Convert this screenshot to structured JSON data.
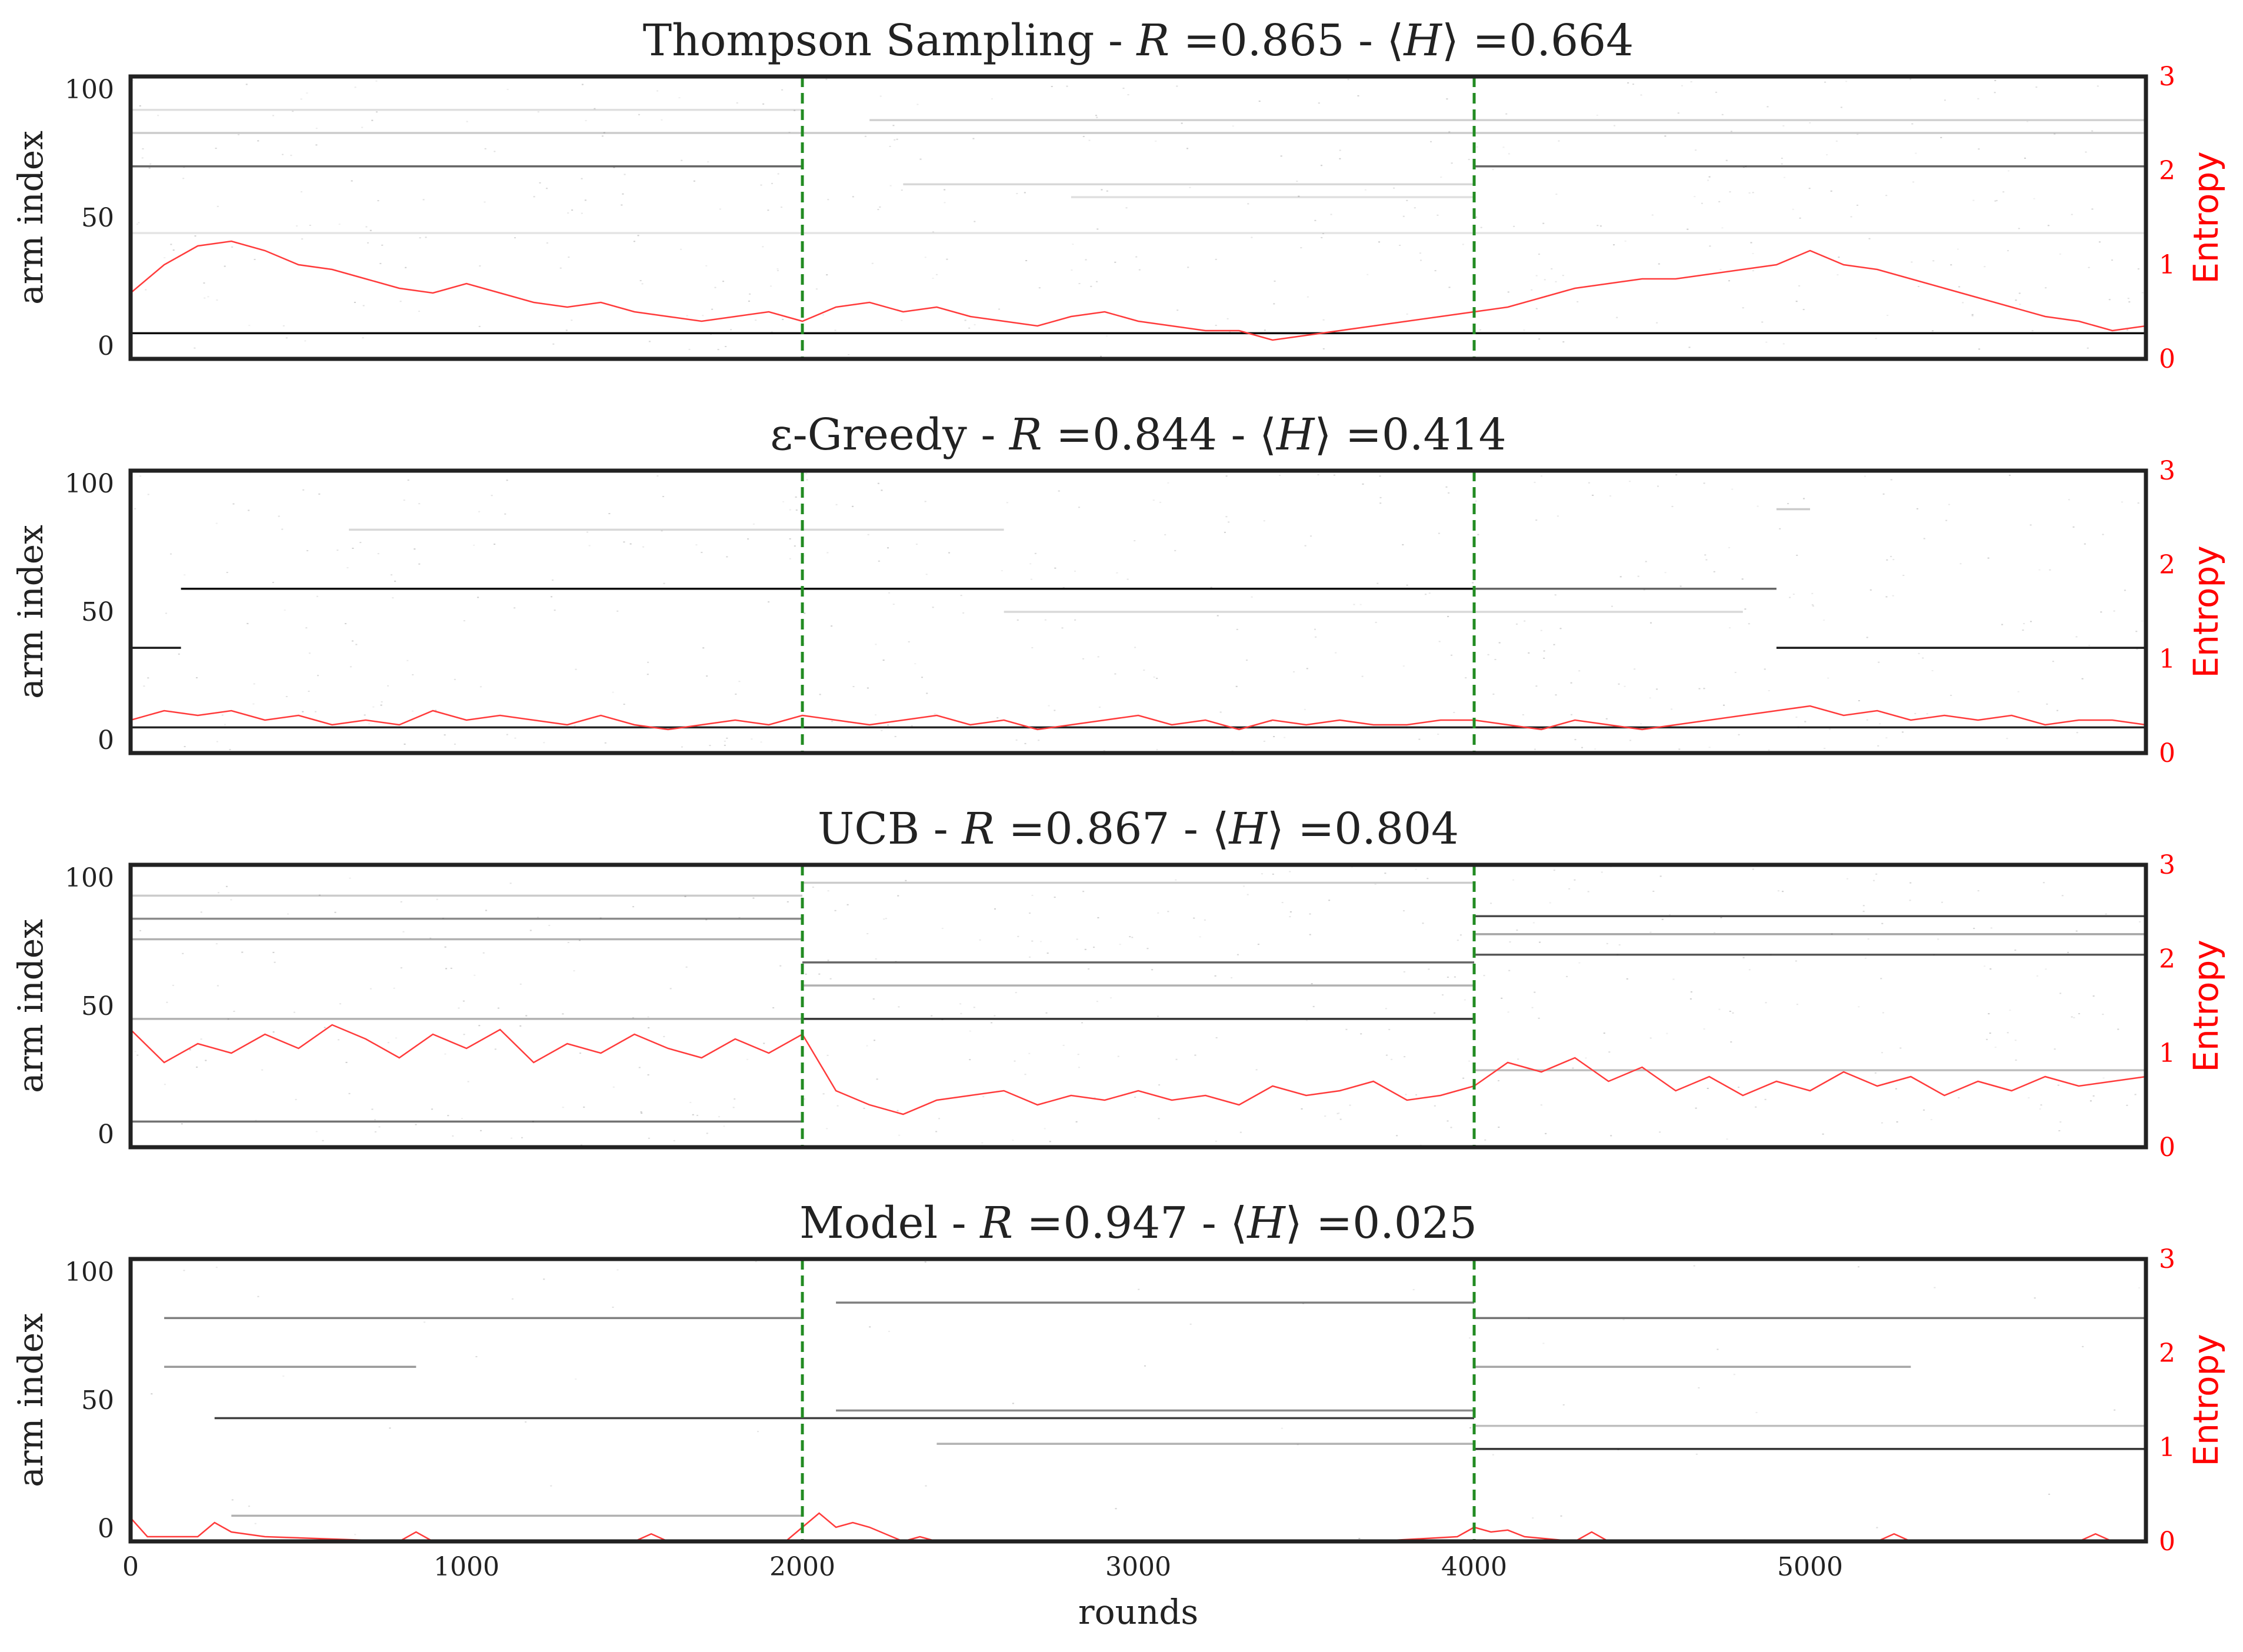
{
  "chart_data": [
    {
      "type": "heatmap",
      "title_prefix": "Thompson Sampling - ",
      "metric_r": "R",
      "reward_text": " =0.865 - ",
      "entropy_open": "⟨",
      "metric_h": "H",
      "entropy_text": "⟩ =0.664",
      "ylabel": "arm index",
      "ylabel_right": "Entropy",
      "xlim": [
        0,
        6000
      ],
      "ylim": [
        -5,
        105
      ],
      "ylim_right": [
        0,
        3
      ],
      "yticks": [
        0,
        50,
        100
      ],
      "yticks_right": [
        0,
        1,
        2,
        3
      ],
      "change_points": [
        2000,
        4000
      ],
      "arm_traces": [
        {
          "arm": 5,
          "start": 0,
          "end": 6000,
          "intensity": 0.95
        },
        {
          "arm": 70,
          "start": 0,
          "end": 2000,
          "intensity": 0.6
        },
        {
          "arm": 70,
          "start": 4000,
          "end": 6000,
          "intensity": 0.6
        },
        {
          "arm": 83,
          "start": 0,
          "end": 6000,
          "intensity": 0.2
        },
        {
          "arm": 88,
          "start": 2200,
          "end": 6000,
          "intensity": 0.18
        },
        {
          "arm": 63,
          "start": 2300,
          "end": 4000,
          "intensity": 0.15
        },
        {
          "arm": 58,
          "start": 2800,
          "end": 4000,
          "intensity": 0.12
        },
        {
          "arm": 92,
          "start": 0,
          "end": 2000,
          "intensity": 0.12
        },
        {
          "arm": 44,
          "start": 0,
          "end": 6000,
          "intensity": 0.1
        }
      ],
      "entropy": {
        "x": [
          0,
          100,
          200,
          300,
          400,
          500,
          600,
          700,
          800,
          900,
          1000,
          1100,
          1200,
          1300,
          1400,
          1500,
          1600,
          1700,
          1800,
          1900,
          2000,
          2100,
          2200,
          2300,
          2400,
          2500,
          2600,
          2700,
          2800,
          2900,
          3000,
          3100,
          3200,
          3300,
          3400,
          3500,
          3600,
          3700,
          3800,
          3900,
          4000,
          4100,
          4200,
          4300,
          4400,
          4500,
          4600,
          4700,
          4800,
          4900,
          5000,
          5100,
          5200,
          5300,
          5400,
          5500,
          5600,
          5700,
          5800,
          5900,
          6000
        ],
        "y": [
          0.7,
          1.0,
          1.2,
          1.25,
          1.15,
          1.0,
          0.95,
          0.85,
          0.75,
          0.7,
          0.8,
          0.7,
          0.6,
          0.55,
          0.6,
          0.5,
          0.45,
          0.4,
          0.45,
          0.5,
          0.4,
          0.55,
          0.6,
          0.5,
          0.55,
          0.45,
          0.4,
          0.35,
          0.45,
          0.5,
          0.4,
          0.35,
          0.3,
          0.3,
          0.2,
          0.25,
          0.3,
          0.35,
          0.4,
          0.45,
          0.5,
          0.55,
          0.65,
          0.75,
          0.8,
          0.85,
          0.85,
          0.9,
          0.95,
          1.0,
          1.15,
          1.0,
          0.95,
          0.85,
          0.75,
          0.65,
          0.55,
          0.45,
          0.4,
          0.3,
          0.35
        ]
      }
    },
    {
      "type": "heatmap",
      "title_prefix": "ε-Greedy - ",
      "metric_r": "R",
      "reward_text": " =0.844 - ",
      "entropy_open": "⟨",
      "metric_h": "H",
      "entropy_text": "⟩ =0.414",
      "ylabel": "arm index",
      "ylabel_right": "Entropy",
      "xlim": [
        0,
        6000
      ],
      "ylim": [
        -5,
        105
      ],
      "ylim_right": [
        0,
        3
      ],
      "yticks": [
        0,
        50,
        100
      ],
      "yticks_right": [
        0,
        1,
        2,
        3
      ],
      "change_points": [
        2000,
        4000
      ],
      "arm_traces": [
        {
          "arm": 5,
          "start": 0,
          "end": 6000,
          "intensity": 0.85
        },
        {
          "arm": 59,
          "start": 150,
          "end": 4000,
          "intensity": 0.95
        },
        {
          "arm": 59,
          "start": 4000,
          "end": 4900,
          "intensity": 0.6
        },
        {
          "arm": 36,
          "start": 0,
          "end": 150,
          "intensity": 0.9
        },
        {
          "arm": 36,
          "start": 4900,
          "end": 6000,
          "intensity": 0.9
        },
        {
          "arm": 82,
          "start": 650,
          "end": 2600,
          "intensity": 0.15
        },
        {
          "arm": 50,
          "start": 2600,
          "end": 4800,
          "intensity": 0.15
        },
        {
          "arm": 90,
          "start": 4900,
          "end": 5000,
          "intensity": 0.2
        }
      ],
      "entropy": {
        "x": [
          0,
          100,
          200,
          300,
          400,
          500,
          600,
          700,
          800,
          900,
          1000,
          1100,
          1200,
          1300,
          1400,
          1500,
          1600,
          1700,
          1800,
          1900,
          2000,
          2100,
          2200,
          2300,
          2400,
          2500,
          2600,
          2700,
          2800,
          2900,
          3000,
          3100,
          3200,
          3300,
          3400,
          3500,
          3600,
          3700,
          3800,
          3900,
          4000,
          4100,
          4200,
          4300,
          4400,
          4500,
          4600,
          4700,
          4800,
          4900,
          5000,
          5100,
          5200,
          5300,
          5400,
          5500,
          5600,
          5700,
          5800,
          5900,
          6000
        ],
        "y": [
          0.35,
          0.45,
          0.4,
          0.45,
          0.35,
          0.4,
          0.3,
          0.35,
          0.3,
          0.45,
          0.35,
          0.4,
          0.35,
          0.3,
          0.4,
          0.3,
          0.25,
          0.3,
          0.35,
          0.3,
          0.4,
          0.35,
          0.3,
          0.35,
          0.4,
          0.3,
          0.35,
          0.25,
          0.3,
          0.35,
          0.4,
          0.3,
          0.35,
          0.25,
          0.35,
          0.3,
          0.35,
          0.3,
          0.3,
          0.35,
          0.35,
          0.3,
          0.25,
          0.35,
          0.3,
          0.25,
          0.3,
          0.35,
          0.4,
          0.45,
          0.5,
          0.4,
          0.45,
          0.35,
          0.4,
          0.35,
          0.4,
          0.3,
          0.35,
          0.35,
          0.3
        ]
      }
    },
    {
      "type": "heatmap",
      "title_prefix": "UCB - ",
      "metric_r": "R",
      "reward_text": " =0.867 - ",
      "entropy_open": "⟨",
      "metric_h": "H",
      "entropy_text": "⟩ =0.804",
      "ylabel": "arm index",
      "ylabel_right": "Entropy",
      "xlim": [
        0,
        6000
      ],
      "ylim": [
        -5,
        105
      ],
      "ylim_right": [
        0,
        3
      ],
      "yticks": [
        0,
        50,
        100
      ],
      "yticks_right": [
        0,
        1,
        2,
        3
      ],
      "change_points": [
        2000,
        4000
      ],
      "arm_traces": [
        {
          "arm": 5,
          "start": 0,
          "end": 2000,
          "intensity": 0.55
        },
        {
          "arm": 84,
          "start": 0,
          "end": 2000,
          "intensity": 0.45
        },
        {
          "arm": 76,
          "start": 0,
          "end": 2000,
          "intensity": 0.3
        },
        {
          "arm": 45,
          "start": 0,
          "end": 2000,
          "intensity": 0.3
        },
        {
          "arm": 93,
          "start": 0,
          "end": 2000,
          "intensity": 0.2
        },
        {
          "arm": 45,
          "start": 2000,
          "end": 4000,
          "intensity": 0.8
        },
        {
          "arm": 67,
          "start": 2000,
          "end": 4000,
          "intensity": 0.6
        },
        {
          "arm": 58,
          "start": 2000,
          "end": 4000,
          "intensity": 0.3
        },
        {
          "arm": 98,
          "start": 2000,
          "end": 4000,
          "intensity": 0.2
        },
        {
          "arm": 85,
          "start": 4000,
          "end": 6000,
          "intensity": 0.7
        },
        {
          "arm": 70,
          "start": 4000,
          "end": 6000,
          "intensity": 0.65
        },
        {
          "arm": 78,
          "start": 4000,
          "end": 6000,
          "intensity": 0.35
        },
        {
          "arm": 25,
          "start": 4000,
          "end": 6000,
          "intensity": 0.25
        }
      ],
      "entropy": {
        "x": [
          0,
          100,
          200,
          300,
          400,
          500,
          600,
          700,
          800,
          900,
          1000,
          1100,
          1200,
          1300,
          1400,
          1500,
          1600,
          1700,
          1800,
          1900,
          2000,
          2100,
          2200,
          2300,
          2400,
          2500,
          2600,
          2700,
          2800,
          2900,
          3000,
          3100,
          3200,
          3300,
          3400,
          3500,
          3600,
          3700,
          3800,
          3900,
          4000,
          4100,
          4200,
          4300,
          4400,
          4500,
          4600,
          4700,
          4800,
          4900,
          5000,
          5100,
          5200,
          5300,
          5400,
          5500,
          5600,
          5700,
          5800,
          5900,
          6000
        ],
        "y": [
          1.25,
          0.9,
          1.1,
          1.0,
          1.2,
          1.05,
          1.3,
          1.15,
          0.95,
          1.2,
          1.05,
          1.25,
          0.9,
          1.1,
          1.0,
          1.2,
          1.05,
          0.95,
          1.15,
          1.0,
          1.2,
          0.6,
          0.45,
          0.35,
          0.5,
          0.55,
          0.6,
          0.45,
          0.55,
          0.5,
          0.6,
          0.5,
          0.55,
          0.45,
          0.65,
          0.55,
          0.6,
          0.7,
          0.5,
          0.55,
          0.65,
          0.9,
          0.8,
          0.95,
          0.7,
          0.85,
          0.6,
          0.75,
          0.55,
          0.7,
          0.6,
          0.8,
          0.65,
          0.75,
          0.55,
          0.7,
          0.6,
          0.75,
          0.65,
          0.7,
          0.75
        ]
      }
    },
    {
      "type": "heatmap",
      "title_prefix": "Model - ",
      "metric_r": "R",
      "reward_text": " =0.947 - ",
      "entropy_open": "⟨",
      "metric_h": "H",
      "entropy_text": "⟩ =0.025",
      "ylabel": "arm index",
      "ylabel_right": "Entropy",
      "xlabel": "rounds",
      "xlim": [
        0,
        6000
      ],
      "ylim": [
        -5,
        105
      ],
      "ylim_right": [
        0,
        3
      ],
      "yticks": [
        0,
        50,
        100
      ],
      "yticks_right": [
        0,
        1,
        2,
        3
      ],
      "xticks": [
        0,
        1000,
        2000,
        3000,
        4000,
        5000
      ],
      "change_points": [
        2000,
        4000
      ],
      "arm_traces": [
        {
          "arm": 43,
          "start": 250,
          "end": 4000,
          "intensity": 0.75
        },
        {
          "arm": 82,
          "start": 100,
          "end": 2000,
          "intensity": 0.5
        },
        {
          "arm": 63,
          "start": 100,
          "end": 850,
          "intensity": 0.4
        },
        {
          "arm": 5,
          "start": 300,
          "end": 2000,
          "intensity": 0.3
        },
        {
          "arm": 46,
          "start": 2100,
          "end": 4000,
          "intensity": 0.45
        },
        {
          "arm": 88,
          "start": 2100,
          "end": 4000,
          "intensity": 0.5
        },
        {
          "arm": 33,
          "start": 2400,
          "end": 4000,
          "intensity": 0.3
        },
        {
          "arm": 82,
          "start": 4000,
          "end": 6000,
          "intensity": 0.55
        },
        {
          "arm": 31,
          "start": 4000,
          "end": 6000,
          "intensity": 0.8
        },
        {
          "arm": 63,
          "start": 4000,
          "end": 5300,
          "intensity": 0.35
        },
        {
          "arm": 40,
          "start": 4000,
          "end": 6000,
          "intensity": 0.25
        }
      ],
      "entropy": {
        "x": [
          0,
          50,
          100,
          200,
          250,
          300,
          400,
          800,
          850,
          900,
          1500,
          1550,
          1600,
          1950,
          2000,
          2050,
          2100,
          2150,
          2200,
          2300,
          2350,
          2400,
          3700,
          3950,
          4000,
          4050,
          4100,
          4150,
          4300,
          4350,
          4400,
          5200,
          5250,
          5300,
          5800,
          5850,
          5900,
          6000
        ],
        "y": [
          0.25,
          0.05,
          0.05,
          0.05,
          0.2,
          0.1,
          0.05,
          0.0,
          0.1,
          0.0,
          0.0,
          0.08,
          0.0,
          0.0,
          0.15,
          0.3,
          0.15,
          0.2,
          0.15,
          0.0,
          0.05,
          0.0,
          0.0,
          0.05,
          0.15,
          0.1,
          0.12,
          0.05,
          0.0,
          0.1,
          0.0,
          0.0,
          0.08,
          0.0,
          0.0,
          0.08,
          0.0,
          0.0
        ]
      }
    }
  ],
  "colors": {
    "trace": "#000000",
    "entropy_line": "#ff3b3b",
    "change_point": "#228B22",
    "right_axis": "#ff0000",
    "frame": "#222222"
  }
}
